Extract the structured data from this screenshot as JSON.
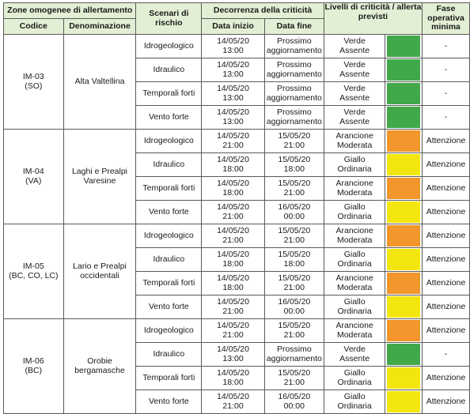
{
  "header": {
    "zones_group": "Zone omogenee di allertamento",
    "code": "Codice",
    "name": "Denominazione",
    "scenario": "Scenari di rischio",
    "period_group": "Decorrenza della criticità",
    "start": "Data inizio",
    "end": "Data fine",
    "levels": "Livelli di criticità / allerta previsti",
    "phase": "Fase operativa minima"
  },
  "colors": {
    "header_bg": "#e3efd4",
    "verde": "#42a94a",
    "giallo": "#f2e60e",
    "arancione": "#f3962b"
  },
  "zones": [
    {
      "code": "IM-03\n(SO)",
      "name": "Alta Valtellina",
      "rows": [
        {
          "scenario": "Idrogeologico",
          "start": "14/05/20\n13:00",
          "end": "Prossimo\naggiornamento",
          "level": "Verde\nAssente",
          "color": "verde",
          "phase": "-"
        },
        {
          "scenario": "Idraulico",
          "start": "14/05/20\n13:00",
          "end": "Prossimo\naggiornamento",
          "level": "Verde\nAssente",
          "color": "verde",
          "phase": "-"
        },
        {
          "scenario": "Temporali forti",
          "start": "14/05/20\n13:00",
          "end": "Prossimo\naggiornamento",
          "level": "Verde\nAssente",
          "color": "verde",
          "phase": "-"
        },
        {
          "scenario": "Vento forte",
          "start": "14/05/20\n13:00",
          "end": "Prossimo\naggiornamento",
          "level": "Verde\nAssente",
          "color": "verde",
          "phase": "-"
        }
      ]
    },
    {
      "code": "IM-04\n(VA)",
      "name": "Laghi e Prealpi\nVaresine",
      "rows": [
        {
          "scenario": "Idrogeologico",
          "start": "14/05/20\n21:00",
          "end": "15/05/20\n21:00",
          "level": "Arancione\nModerata",
          "color": "arancione",
          "phase": "Attenzione"
        },
        {
          "scenario": "Idraulico",
          "start": "14/05/20\n18:00",
          "end": "15/05/20\n18:00",
          "level": "Giallo\nOrdinaria",
          "color": "giallo",
          "phase": "Attenzione"
        },
        {
          "scenario": "Temporali forti",
          "start": "14/05/20\n18:00",
          "end": "15/05/20\n21:00",
          "level": "Arancione\nModerata",
          "color": "arancione",
          "phase": "Attenzione"
        },
        {
          "scenario": "Vento forte",
          "start": "14/05/20\n21:00",
          "end": "16/05/20\n00:00",
          "level": "Giallo\nOrdinaria",
          "color": "giallo",
          "phase": "Attenzione"
        }
      ]
    },
    {
      "code": "IM-05\n(BC, CO, LC)",
      "name": "Lario e Prealpi\noccidentali",
      "rows": [
        {
          "scenario": "Idrogeologico",
          "start": "14/05/20\n21:00",
          "end": "15/05/20\n21:00",
          "level": "Arancione\nModerata",
          "color": "arancione",
          "phase": "Attenzione"
        },
        {
          "scenario": "Idraulico",
          "start": "14/05/20\n18:00",
          "end": "15/05/20\n18:00",
          "level": "Giallo\nOrdinaria",
          "color": "giallo",
          "phase": "Attenzione"
        },
        {
          "scenario": "Temporali forti",
          "start": "14/05/20\n18:00",
          "end": "15/05/20\n21:00",
          "level": "Arancione\nModerata",
          "color": "arancione",
          "phase": "Attenzione"
        },
        {
          "scenario": "Vento forte",
          "start": "14/05/20\n21:00",
          "end": "16/05/20\n00:00",
          "level": "Giallo\nOrdinaria",
          "color": "giallo",
          "phase": "Attenzione"
        }
      ]
    },
    {
      "code": "IM-06\n(BC)",
      "name": "Orobie\nbergamasche",
      "rows": [
        {
          "scenario": "Idrogeologico",
          "start": "14/05/20\n21:00",
          "end": "15/05/20\n21:00",
          "level": "Arancione\nModerata",
          "color": "arancione",
          "phase": "Attenzione"
        },
        {
          "scenario": "Idraulico",
          "start": "14/05/20\n13:00",
          "end": "Prossimo\naggiornamento",
          "level": "Verde\nAssente",
          "color": "verde",
          "phase": "-"
        },
        {
          "scenario": "Temporali forti",
          "start": "14/05/20\n18:00",
          "end": "15/05/20\n21:00",
          "level": "Giallo\nOrdinaria",
          "color": "giallo",
          "phase": "Attenzione"
        },
        {
          "scenario": "Vento forte",
          "start": "14/05/20\n21:00",
          "end": "16/05/20\n00:00",
          "level": "Giallo\nOrdinaria",
          "color": "giallo",
          "phase": "Attenzione"
        }
      ]
    }
  ]
}
